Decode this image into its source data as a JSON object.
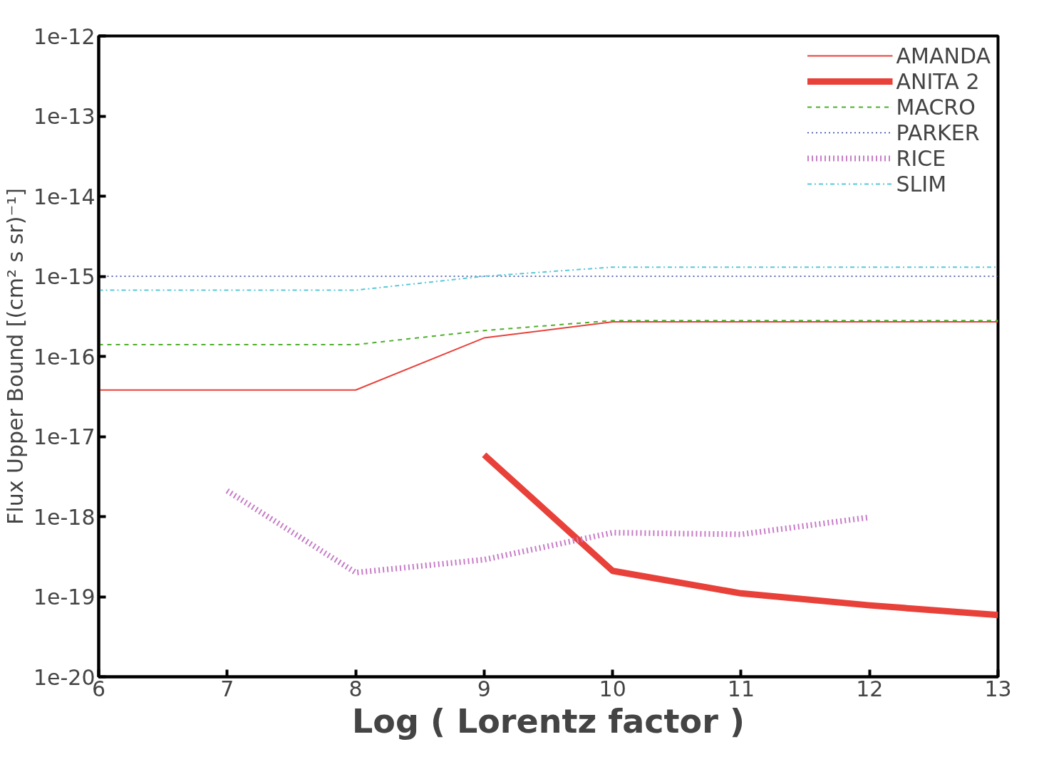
{
  "chart_data": {
    "type": "line",
    "xlabel": "Log ( Lorentz factor )",
    "ylabel": "Flux Upper Bound [(cm² s sr)⁻¹]",
    "log": "y",
    "legend": "top right",
    "grid": false,
    "marker": "none",
    "xlim": [
      6,
      13
    ],
    "xticks": [
      6,
      7,
      8,
      9,
      10,
      11,
      12,
      13
    ],
    "ylim": [
      1e-20,
      1e-12
    ],
    "yticks": [
      {
        "value": 1e-20,
        "label": "1e-20"
      },
      {
        "value": 1e-19,
        "label": "1e-19"
      },
      {
        "value": 1e-18,
        "label": "1e-18"
      },
      {
        "value": 1e-17,
        "label": "1e-17"
      },
      {
        "value": 1e-16,
        "label": "1e-16"
      },
      {
        "value": 1e-15,
        "label": "1e-15"
      },
      {
        "value": 1e-14,
        "label": "1e-14"
      },
      {
        "value": 1e-13,
        "label": "1e-13"
      },
      {
        "value": 1e-12,
        "label": "1e-12"
      }
    ],
    "series": [
      {
        "name": "AMANDA",
        "color": "#e8413a",
        "line_style": "solid",
        "x": [
          6,
          8,
          9,
          10,
          13
        ],
        "values": [
          3.8e-17,
          3.8e-17,
          1.7e-16,
          2.7e-16,
          2.7e-16
        ]
      },
      {
        "name": "ANITA 2",
        "color": "#e8413a",
        "line_style": "solid",
        "x": [
          9,
          10,
          11,
          12,
          13
        ],
        "values": [
          5.9e-18,
          2.1e-19,
          1.1e-19,
          7.8e-20,
          5.9e-20
        ]
      },
      {
        "name": "MACRO",
        "color": "#4daf2a",
        "line_style": "dashed",
        "x": [
          6,
          8,
          9,
          10,
          13
        ],
        "values": [
          1.4e-16,
          1.4e-16,
          2.1e-16,
          2.8e-16,
          2.8e-16
        ]
      },
      {
        "name": "PARKER",
        "color": "#2b3f9e",
        "line_style": "dotted",
        "x": [
          6,
          13
        ],
        "values": [
          1e-15,
          1e-15
        ]
      },
      {
        "name": "RICE",
        "color": "#c77cc7",
        "line_style": "dotted",
        "x": [
          7,
          8,
          9,
          10,
          11,
          12
        ],
        "values": [
          2.1e-18,
          2e-19,
          2.9e-19,
          6.3e-19,
          6e-19,
          9.8e-19
        ]
      },
      {
        "name": "SLIM",
        "color": "#5bc8d8",
        "line_style": "dashdot",
        "x": [
          6,
          8,
          9,
          10,
          13
        ],
        "values": [
          6.7e-16,
          6.7e-16,
          1e-15,
          1.3e-15,
          1.3e-15
        ]
      }
    ]
  }
}
